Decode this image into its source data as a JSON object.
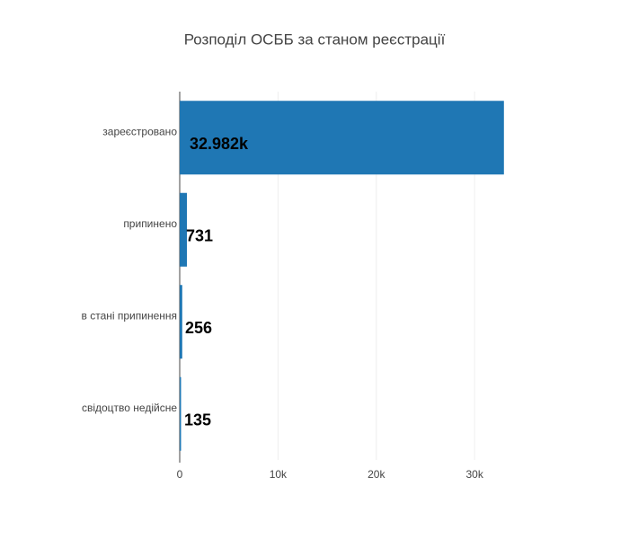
{
  "chart_data": {
    "type": "hbar",
    "title": "Розподіл ОСББ за станом реєстрації",
    "categories": [
      "зареєстровано",
      "припинено",
      "в стані припинення",
      "свідоцтво недійсне"
    ],
    "values": [
      32982,
      731,
      256,
      135
    ],
    "value_labels": [
      "32.982k",
      "731",
      "256",
      "135"
    ],
    "color": "#1f77b4",
    "xlim": [
      0,
      33000
    ],
    "xticks": [
      0,
      {
        "value": 10000,
        "label": "10k"
      },
      {
        "value": 20000,
        "label": "20k"
      },
      {
        "value": 30000,
        "label": "30k"
      }
    ],
    "grid": true
  }
}
